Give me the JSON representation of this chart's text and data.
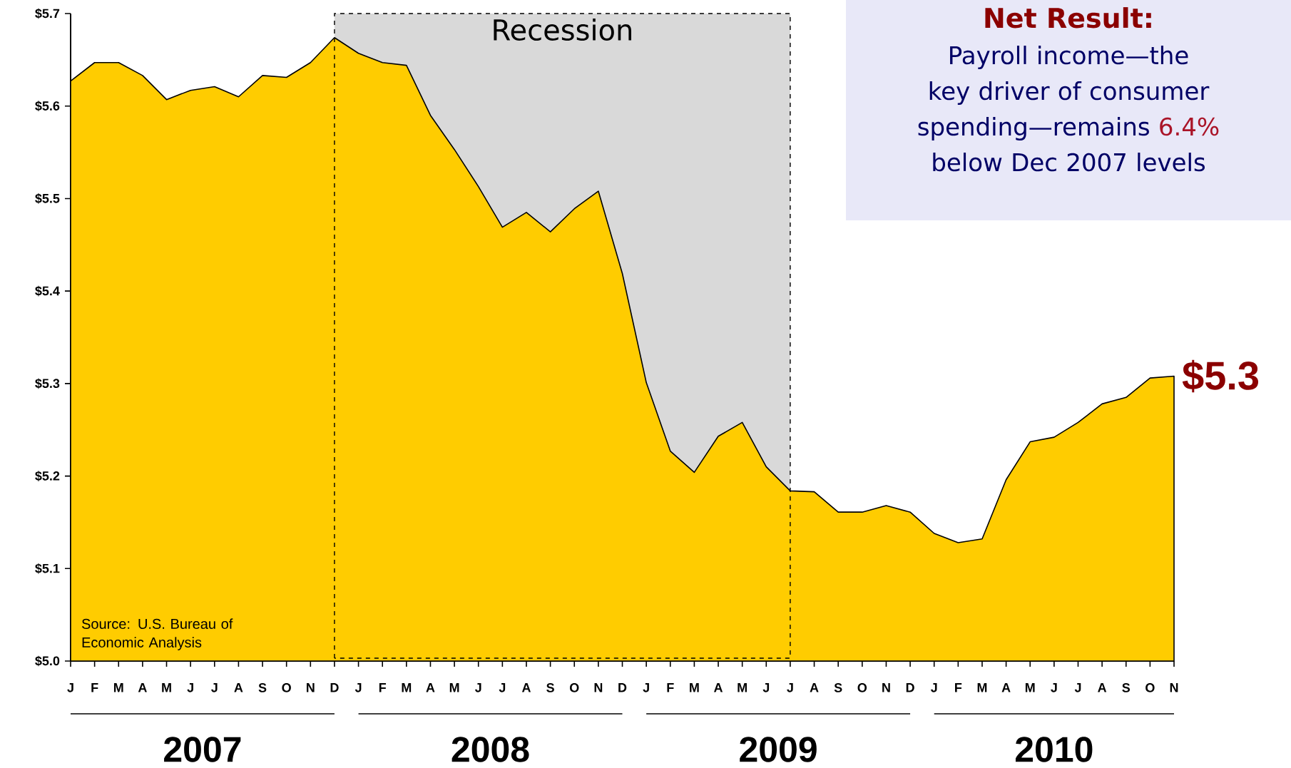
{
  "chart_data": {
    "type": "area",
    "color": "#ffcc00",
    "categories": [
      "J",
      "F",
      "M",
      "A",
      "M",
      "J",
      "J",
      "A",
      "S",
      "O",
      "N",
      "D",
      "J",
      "F",
      "M",
      "A",
      "M",
      "J",
      "J",
      "A",
      "S",
      "O",
      "N",
      "D",
      "J",
      "F",
      "M",
      "A",
      "M",
      "J",
      "J",
      "A",
      "S",
      "O",
      "N",
      "D",
      "J",
      "F",
      "M",
      "A",
      "M",
      "J",
      "J",
      "A",
      "S",
      "O",
      "N"
    ],
    "values": [
      5.627,
      5.647,
      5.647,
      5.633,
      5.607,
      5.617,
      5.621,
      5.61,
      5.633,
      5.631,
      5.647,
      5.674,
      5.657,
      5.647,
      5.644,
      5.59,
      5.553,
      5.513,
      5.469,
      5.485,
      5.464,
      5.489,
      5.508,
      5.419,
      5.301,
      5.227,
      5.204,
      5.243,
      5.258,
      5.21,
      5.184,
      5.183,
      5.161,
      5.161,
      5.168,
      5.161,
      5.138,
      5.128,
      5.132,
      5.196,
      5.237,
      5.242,
      5.258,
      5.278,
      5.285,
      5.306,
      5.308
    ],
    "ylim": [
      5.0,
      5.7
    ],
    "yticks": [
      {
        "value": 5.0,
        "label": "$5.0"
      },
      {
        "value": 5.1,
        "label": "$5.1"
      },
      {
        "value": 5.2,
        "label": "$5.2"
      },
      {
        "value": 5.3,
        "label": "$5.3"
      },
      {
        "value": 5.4,
        "label": "$5.4"
      },
      {
        "value": 5.5,
        "label": "$5.5"
      },
      {
        "value": 5.6,
        "label": "$5.6"
      },
      {
        "value": 5.7,
        "label": "$5.7"
      }
    ],
    "annotations": [
      "Source:  U.S. Bureau of Economic Analysis",
      "Recession",
      "Net Result:",
      "Payroll income—the key driver of consumer spending—remains",
      "6.4%",
      "below Dec 2007 levels",
      "$5.3",
      "2007",
      "2008",
      "2009",
      "2010"
    ]
  }
}
